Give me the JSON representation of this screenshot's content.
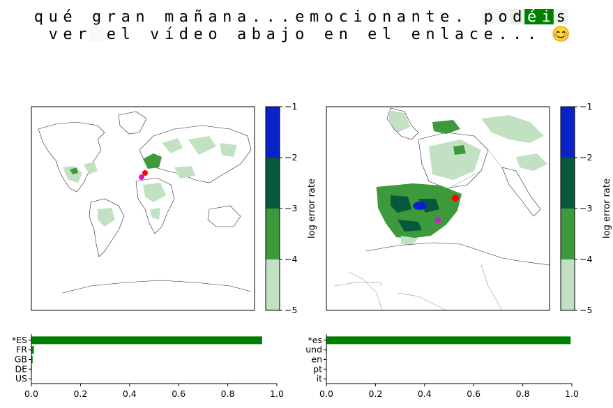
{
  "text": {
    "tokens": [
      {
        "t": "q",
        "w": 0.0
      },
      {
        "t": "u",
        "w": 0.0
      },
      {
        "t": "é",
        "w": 0.0
      },
      {
        "t": " ",
        "w": 0.0
      },
      {
        "t": "g",
        "w": 0.0
      },
      {
        "t": "r",
        "w": 0.0
      },
      {
        "t": "a",
        "w": 0.0
      },
      {
        "t": "n",
        "w": 0.0
      },
      {
        "t": " ",
        "w": 0.0
      },
      {
        "t": "m",
        "w": 0.0
      },
      {
        "t": "a",
        "w": 0.0
      },
      {
        "t": "ñ",
        "w": 0.0
      },
      {
        "t": "a",
        "w": 0.0
      },
      {
        "t": "n",
        "w": 0.0
      },
      {
        "t": "a",
        "w": 0.0
      },
      {
        "t": ".",
        "w": 0.0
      },
      {
        "t": ".",
        "w": 0.0
      },
      {
        "t": ".",
        "w": 0.0
      },
      {
        "t": "e",
        "w": 0.0
      },
      {
        "t": "m",
        "w": 0.0
      },
      {
        "t": "o",
        "w": 0.0
      },
      {
        "t": "c",
        "w": 0.0
      },
      {
        "t": "i",
        "w": 0.0
      },
      {
        "t": "o",
        "w": 0.0
      },
      {
        "t": "n",
        "w": 0.0
      },
      {
        "t": "a",
        "w": 0.0
      },
      {
        "t": "n",
        "w": 0.0
      },
      {
        "t": "t",
        "w": 0.0
      },
      {
        "t": "e",
        "w": 0.0
      },
      {
        "t": ".",
        "w": 0.0
      },
      {
        "t": " ",
        "w": 0.0
      },
      {
        "t": "p",
        "w": 0.05
      },
      {
        "t": "o",
        "w": 0.05
      },
      {
        "t": "d",
        "w": 0.1
      },
      {
        "t": "é",
        "w": 1.0
      },
      {
        "t": "i",
        "w": 1.0
      },
      {
        "t": "s",
        "w": 0.08
      },
      {
        "t": " ",
        "w": 0.0
      },
      {
        "t": "v",
        "w": 0.0
      },
      {
        "t": "e",
        "w": 0.0
      },
      {
        "t": "r",
        "w": 0.0
      },
      {
        "t": " ",
        "w": 0.03
      },
      {
        "t": "e",
        "w": 0.0
      },
      {
        "t": "l",
        "w": 0.0
      },
      {
        "t": " ",
        "w": 0.0
      },
      {
        "t": "v",
        "w": 0.0
      },
      {
        "t": "í",
        "w": 0.0
      },
      {
        "t": "d",
        "w": 0.0
      },
      {
        "t": "e",
        "w": 0.0
      },
      {
        "t": "o",
        "w": 0.0
      },
      {
        "t": " ",
        "w": 0.0
      },
      {
        "t": "a",
        "w": 0.0
      },
      {
        "t": "b",
        "w": 0.0
      },
      {
        "t": "a",
        "w": 0.0
      },
      {
        "t": "j",
        "w": 0.0
      },
      {
        "t": "o",
        "w": 0.0
      },
      {
        "t": " ",
        "w": 0.0
      },
      {
        "t": "e",
        "w": 0.0
      },
      {
        "t": "n",
        "w": 0.0
      },
      {
        "t": " ",
        "w": 0.0
      },
      {
        "t": "e",
        "w": 0.0
      },
      {
        "t": "l",
        "w": 0.0
      },
      {
        "t": " ",
        "w": 0.0
      },
      {
        "t": "e",
        "w": 0.0
      },
      {
        "t": "n",
        "w": 0.0
      },
      {
        "t": "l",
        "w": 0.0
      },
      {
        "t": "a",
        "w": 0.0
      },
      {
        "t": "c",
        "w": 0.0
      },
      {
        "t": "e",
        "w": 0.0
      },
      {
        "t": ".",
        "w": 0.0
      },
      {
        "t": ".",
        "w": 0.0
      },
      {
        "t": ".",
        "w": 0.0
      },
      {
        "t": " ",
        "w": 0.0
      },
      {
        "t": "😊",
        "w": 0.0
      }
    ]
  },
  "colors": {
    "highlight": "#008000",
    "bar": "#008000",
    "cb_levels": [
      "#c2e0c2",
      "#3c9a3c",
      "#05583b",
      "#0a22c8"
    ]
  },
  "maps": {
    "left": {
      "name": "world-map",
      "region": "world"
    },
    "right": {
      "name": "iberia-map",
      "region": "western-europe"
    }
  },
  "colorbar": {
    "label": "log error rate",
    "ticks": [
      "−5",
      "−4",
      "−3",
      "−2",
      "−1"
    ]
  },
  "chart_data": [
    {
      "type": "bar",
      "orientation": "horizontal",
      "categories": [
        "*ES",
        "FR",
        "GB",
        "DE",
        "US"
      ],
      "values": [
        0.94,
        0.01,
        0.005,
        0.002,
        0.001
      ],
      "xlim": [
        0,
        1
      ],
      "xticks": [
        "0.0",
        "0.2",
        "0.4",
        "0.6",
        "0.8",
        "1.0"
      ]
    },
    {
      "type": "bar",
      "orientation": "horizontal",
      "categories": [
        "*es",
        "und",
        "en",
        "pt",
        "it"
      ],
      "values": [
        0.995,
        0.002,
        0.001,
        0.001,
        0.001
      ],
      "xlim": [
        0,
        1
      ],
      "xticks": [
        "0.0",
        "0.2",
        "0.4",
        "0.6",
        "0.8",
        "1.0"
      ]
    }
  ]
}
